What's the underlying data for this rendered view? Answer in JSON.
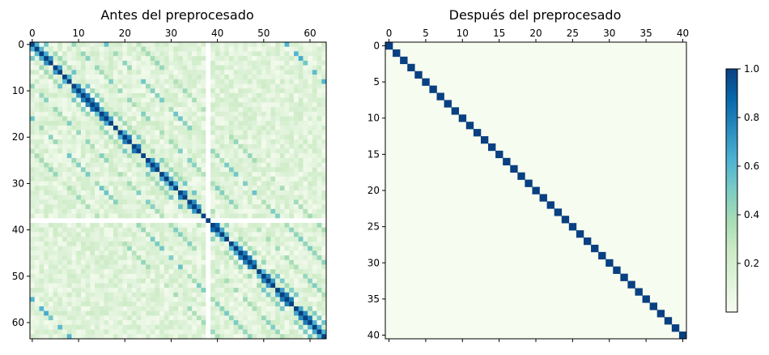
{
  "chart_data": [
    {
      "type": "heatmap",
      "title": "Antes del preprocesado",
      "size": 64,
      "x_ticks": [
        0,
        10,
        20,
        30,
        40,
        50,
        60
      ],
      "y_ticks": [
        0,
        10,
        20,
        30,
        40,
        50,
        60
      ],
      "x_axis_position": "top",
      "value_range": [
        0,
        1
      ],
      "structure": {
        "diagonal": 1.0,
        "blank_row_col": 38,
        "bands": [
          {
            "offset": 1,
            "value": 0.8
          },
          {
            "offset": 3,
            "value": 0.5
          },
          {
            "offset": 9,
            "value": 0.45
          },
          {
            "offset": 16,
            "value": 0.5
          },
          {
            "offset": 23,
            "value": 0.4
          },
          {
            "offset": 55,
            "value": 0.6
          }
        ],
        "background": "weak 0.0-0.25"
      }
    },
    {
      "type": "heatmap",
      "title": "Después del preprocesado",
      "size": 41,
      "x_ticks": [
        0,
        5,
        10,
        15,
        20,
        25,
        30,
        35,
        40
      ],
      "y_ticks": [
        0,
        5,
        10,
        15,
        20,
        25,
        30,
        35,
        40
      ],
      "x_axis_position": "top",
      "value_range": [
        0,
        1
      ],
      "structure": {
        "diagonal": 1.0,
        "off_diagonal": 0.0
      }
    }
  ],
  "colorbar": {
    "colormap": "GnBu",
    "ticks": [
      "0.2",
      "0.4",
      "0.6",
      "0.8",
      "1.0"
    ],
    "tick_values": [
      0.2,
      0.4,
      0.6,
      0.8,
      1.0
    ],
    "range": [
      0.0,
      1.0
    ]
  }
}
